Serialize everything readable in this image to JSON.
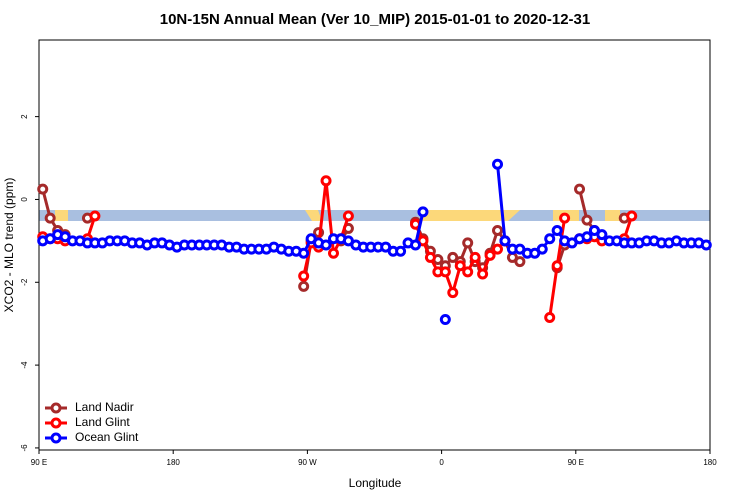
{
  "chart_data": {
    "type": "line",
    "title": "10N-15N Annual Mean (Ver 10_MIP)   2015-01-01 to 2020-12-31",
    "x_label": "Longitude",
    "y_label": "XCO2 - MLO trend (ppm)",
    "xlim": [
      90,
      540
    ],
    "xticks": [
      {
        "value": 90,
        "label": "90 E"
      },
      {
        "value": 180,
        "label": "180"
      },
      {
        "value": 270,
        "label": "90 W"
      },
      {
        "value": 360,
        "label": "0"
      },
      {
        "value": 450,
        "label": "90 E"
      },
      {
        "value": 540,
        "label": "180"
      }
    ],
    "ylim": [
      -6.05,
      3.85
    ],
    "yticks": [
      -6,
      -4,
      -2,
      0,
      2
    ],
    "legend": "bottomleft",
    "x": [
      92.5,
      97.5,
      102.5,
      107.5,
      112.5,
      117.5,
      122.5,
      127.5,
      132.5,
      137.5,
      142.5,
      147.5,
      152.5,
      157.5,
      162.5,
      167.5,
      172.5,
      177.5,
      182.5,
      187.5,
      192.5,
      197.5,
      202.5,
      207.5,
      212.5,
      217.5,
      222.5,
      227.5,
      232.5,
      237.5,
      242.5,
      247.5,
      252.5,
      257.5,
      262.5,
      267.5,
      272.5,
      277.5,
      282.5,
      287.5,
      292.5,
      297.5,
      302.5,
      307.5,
      312.5,
      317.5,
      322.5,
      327.5,
      332.5,
      337.5,
      342.5,
      347.5,
      352.5,
      357.5,
      362.5,
      367.5,
      372.5,
      377.5,
      382.5,
      387.5,
      392.5,
      397.5,
      402.5,
      407.5,
      412.5,
      417.5,
      422.5,
      427.5,
      432.5,
      437.5,
      442.5,
      447.5,
      452.5,
      457.5,
      462.5,
      467.5,
      472.5,
      477.5,
      482.5,
      487.5,
      492.5,
      497.5,
      502.5,
      507.5,
      512.5,
      517.5,
      522.5,
      527.5,
      532.5,
      537.5
    ],
    "series": [
      {
        "name": "Land Nadir",
        "color": "#a52a2a",
        "values": [
          0.25,
          -0.45,
          -0.75,
          -0.85,
          null,
          null,
          -0.45,
          null,
          null,
          null,
          null,
          null,
          null,
          null,
          null,
          null,
          null,
          null,
          null,
          null,
          null,
          null,
          null,
          null,
          null,
          null,
          null,
          null,
          null,
          null,
          null,
          null,
          null,
          null,
          null,
          -2.1,
          -1.0,
          -0.8,
          null,
          null,
          -1.0,
          -0.7,
          null,
          null,
          null,
          null,
          null,
          null,
          null,
          null,
          -0.55,
          -0.95,
          -1.25,
          -1.45,
          -1.6,
          -1.4,
          -1.5,
          -1.05,
          -1.5,
          -1.65,
          -1.3,
          -0.75,
          -1.0,
          -1.4,
          -1.5,
          null,
          null,
          null,
          null,
          -1.65,
          -1.1,
          null,
          0.25,
          -0.5,
          -0.75,
          -0.95,
          null,
          null,
          -0.45,
          null,
          null,
          null,
          null,
          null,
          null,
          null,
          null,
          null,
          null,
          null
        ]
      },
      {
        "name": "Land Glint",
        "color": "#ff0000",
        "values": [
          -0.9,
          -0.95,
          -0.95,
          -1.0,
          null,
          null,
          -0.95,
          -0.4,
          null,
          null,
          null,
          null,
          null,
          null,
          null,
          null,
          null,
          null,
          null,
          null,
          null,
          null,
          null,
          null,
          null,
          null,
          null,
          null,
          null,
          null,
          null,
          null,
          null,
          null,
          null,
          -1.85,
          -1.05,
          -1.15,
          0.45,
          -1.3,
          -0.95,
          -0.4,
          null,
          null,
          null,
          null,
          null,
          null,
          null,
          null,
          -0.6,
          -1.0,
          -1.4,
          -1.75,
          -1.75,
          -2.25,
          -1.6,
          -1.75,
          -1.4,
          -1.8,
          -1.35,
          -1.2,
          -1.0,
          null,
          null,
          null,
          null,
          null,
          -2.85,
          -1.6,
          -0.45,
          null,
          -0.95,
          -0.95,
          -0.9,
          -1.0,
          null,
          null,
          -0.95,
          -0.4,
          null,
          null,
          null,
          null,
          null,
          null,
          null,
          null,
          null,
          null
        ]
      },
      {
        "name": "Ocean Glint",
        "color": "#0000ff",
        "values": [
          -1.0,
          -0.95,
          -0.85,
          -0.9,
          -1.0,
          -1.0,
          -1.05,
          -1.05,
          -1.05,
          -1.0,
          -1.0,
          -1.0,
          -1.05,
          -1.05,
          -1.1,
          -1.05,
          -1.05,
          -1.1,
          -1.15,
          -1.1,
          -1.1,
          -1.1,
          -1.1,
          -1.1,
          -1.1,
          -1.15,
          -1.15,
          -1.2,
          -1.2,
          -1.2,
          -1.2,
          -1.15,
          -1.2,
          -1.25,
          -1.25,
          -1.3,
          -0.95,
          -1.05,
          -1.1,
          -0.95,
          -0.95,
          -1.0,
          -1.1,
          -1.15,
          -1.15,
          -1.15,
          -1.15,
          -1.25,
          -1.25,
          -1.05,
          -1.1,
          -0.3,
          null,
          null,
          -2.9,
          null,
          null,
          null,
          null,
          null,
          null,
          0.85,
          -1.0,
          -1.2,
          -1.2,
          -1.3,
          -1.3,
          -1.2,
          -0.95,
          -0.75,
          -1.0,
          -1.05,
          -0.95,
          -0.9,
          -0.75,
          -0.85,
          -1.0,
          -1.0,
          -1.05,
          -1.05,
          -1.05,
          -1.0,
          -1.0,
          -1.05,
          -1.05,
          -1.0,
          -1.05,
          -1.05,
          -1.05,
          -1.1
        ]
      }
    ]
  }
}
